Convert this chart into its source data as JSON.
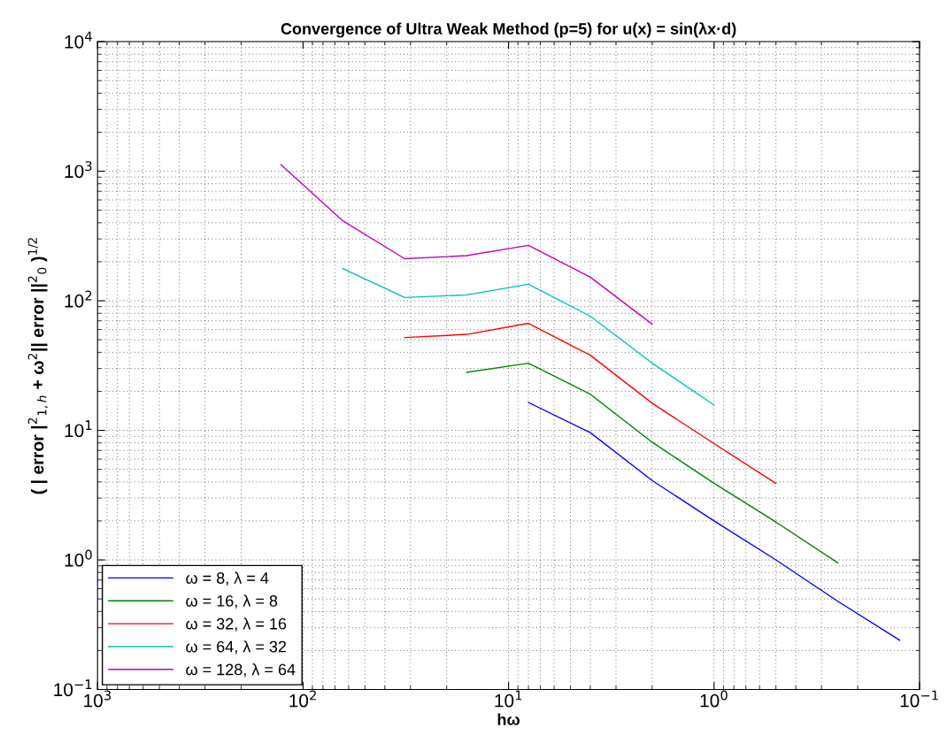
{
  "chart_data": {
    "type": "line",
    "title": "Convergence of Ultra Weak Method (p=5) for u(x) = sin(λx·d)",
    "xlabel": "hω",
    "ylabel": "( | error |$^{2}$$_{1,h}$ + ω$^{2}$|| error ||$^{2}$$_{0}$ )$^{1/2}$",
    "log": "xy",
    "grid": true,
    "legend": "bottom left",
    "marker": "none",
    "line_style": "solid",
    "xlim": [
      1000,
      0.1
    ],
    "ylim": [
      0.1,
      10000
    ],
    "xticks": [
      {
        "value": 1000,
        "label": "10$^{3}$"
      },
      {
        "value": 100,
        "label": "10$^{2}$"
      },
      {
        "value": 10,
        "label": "10$^{1}$"
      },
      {
        "value": 1,
        "label": "10$^{0}$"
      },
      {
        "value": 0.1,
        "label": "10$^{−1}$"
      }
    ],
    "yticks": [
      {
        "value": 0.1,
        "label": "10$^{−1}$"
      },
      {
        "value": 1,
        "label": "10$^{0}$"
      },
      {
        "value": 10,
        "label": "10$^{1}$"
      },
      {
        "value": 100,
        "label": "10$^{2}$"
      },
      {
        "value": 1000,
        "label": "10$^{3}$"
      },
      {
        "value": 10000,
        "label": "10$^{4}$"
      }
    ],
    "series": [
      {
        "name": "ω = 8, λ = 4",
        "color": "#0000ff",
        "x": [
          8,
          4,
          2,
          1,
          0.5,
          0.25,
          0.125
        ],
        "values": [
          16.4,
          9.6,
          4.1,
          2.0,
          1.0,
          0.48,
          0.24
        ]
      },
      {
        "name": "ω = 16, λ = 8",
        "color": "#008000",
        "x": [
          16,
          8,
          4,
          2,
          1,
          0.5,
          0.25
        ],
        "values": [
          28,
          33,
          19,
          8.1,
          3.9,
          1.96,
          0.95
        ]
      },
      {
        "name": "ω = 32, λ = 16",
        "color": "#ff0000",
        "x": [
          32,
          16,
          8,
          4,
          2,
          1,
          0.5
        ],
        "values": [
          52,
          55,
          67,
          38,
          16.2,
          7.9,
          3.9
        ]
      },
      {
        "name": "ω = 64, λ = 32",
        "color": "#00bfbf",
        "x": [
          64,
          32,
          16,
          8,
          4,
          2,
          1
        ],
        "values": [
          177,
          106,
          111,
          134,
          76,
          33,
          15.7
        ]
      },
      {
        "name": "ω = 128, λ = 64",
        "color": "#bf00bf",
        "x": [
          128,
          64,
          32,
          16,
          8,
          4,
          2
        ],
        "values": [
          1120,
          414,
          211,
          223,
          268,
          152,
          66
        ]
      }
    ]
  }
}
